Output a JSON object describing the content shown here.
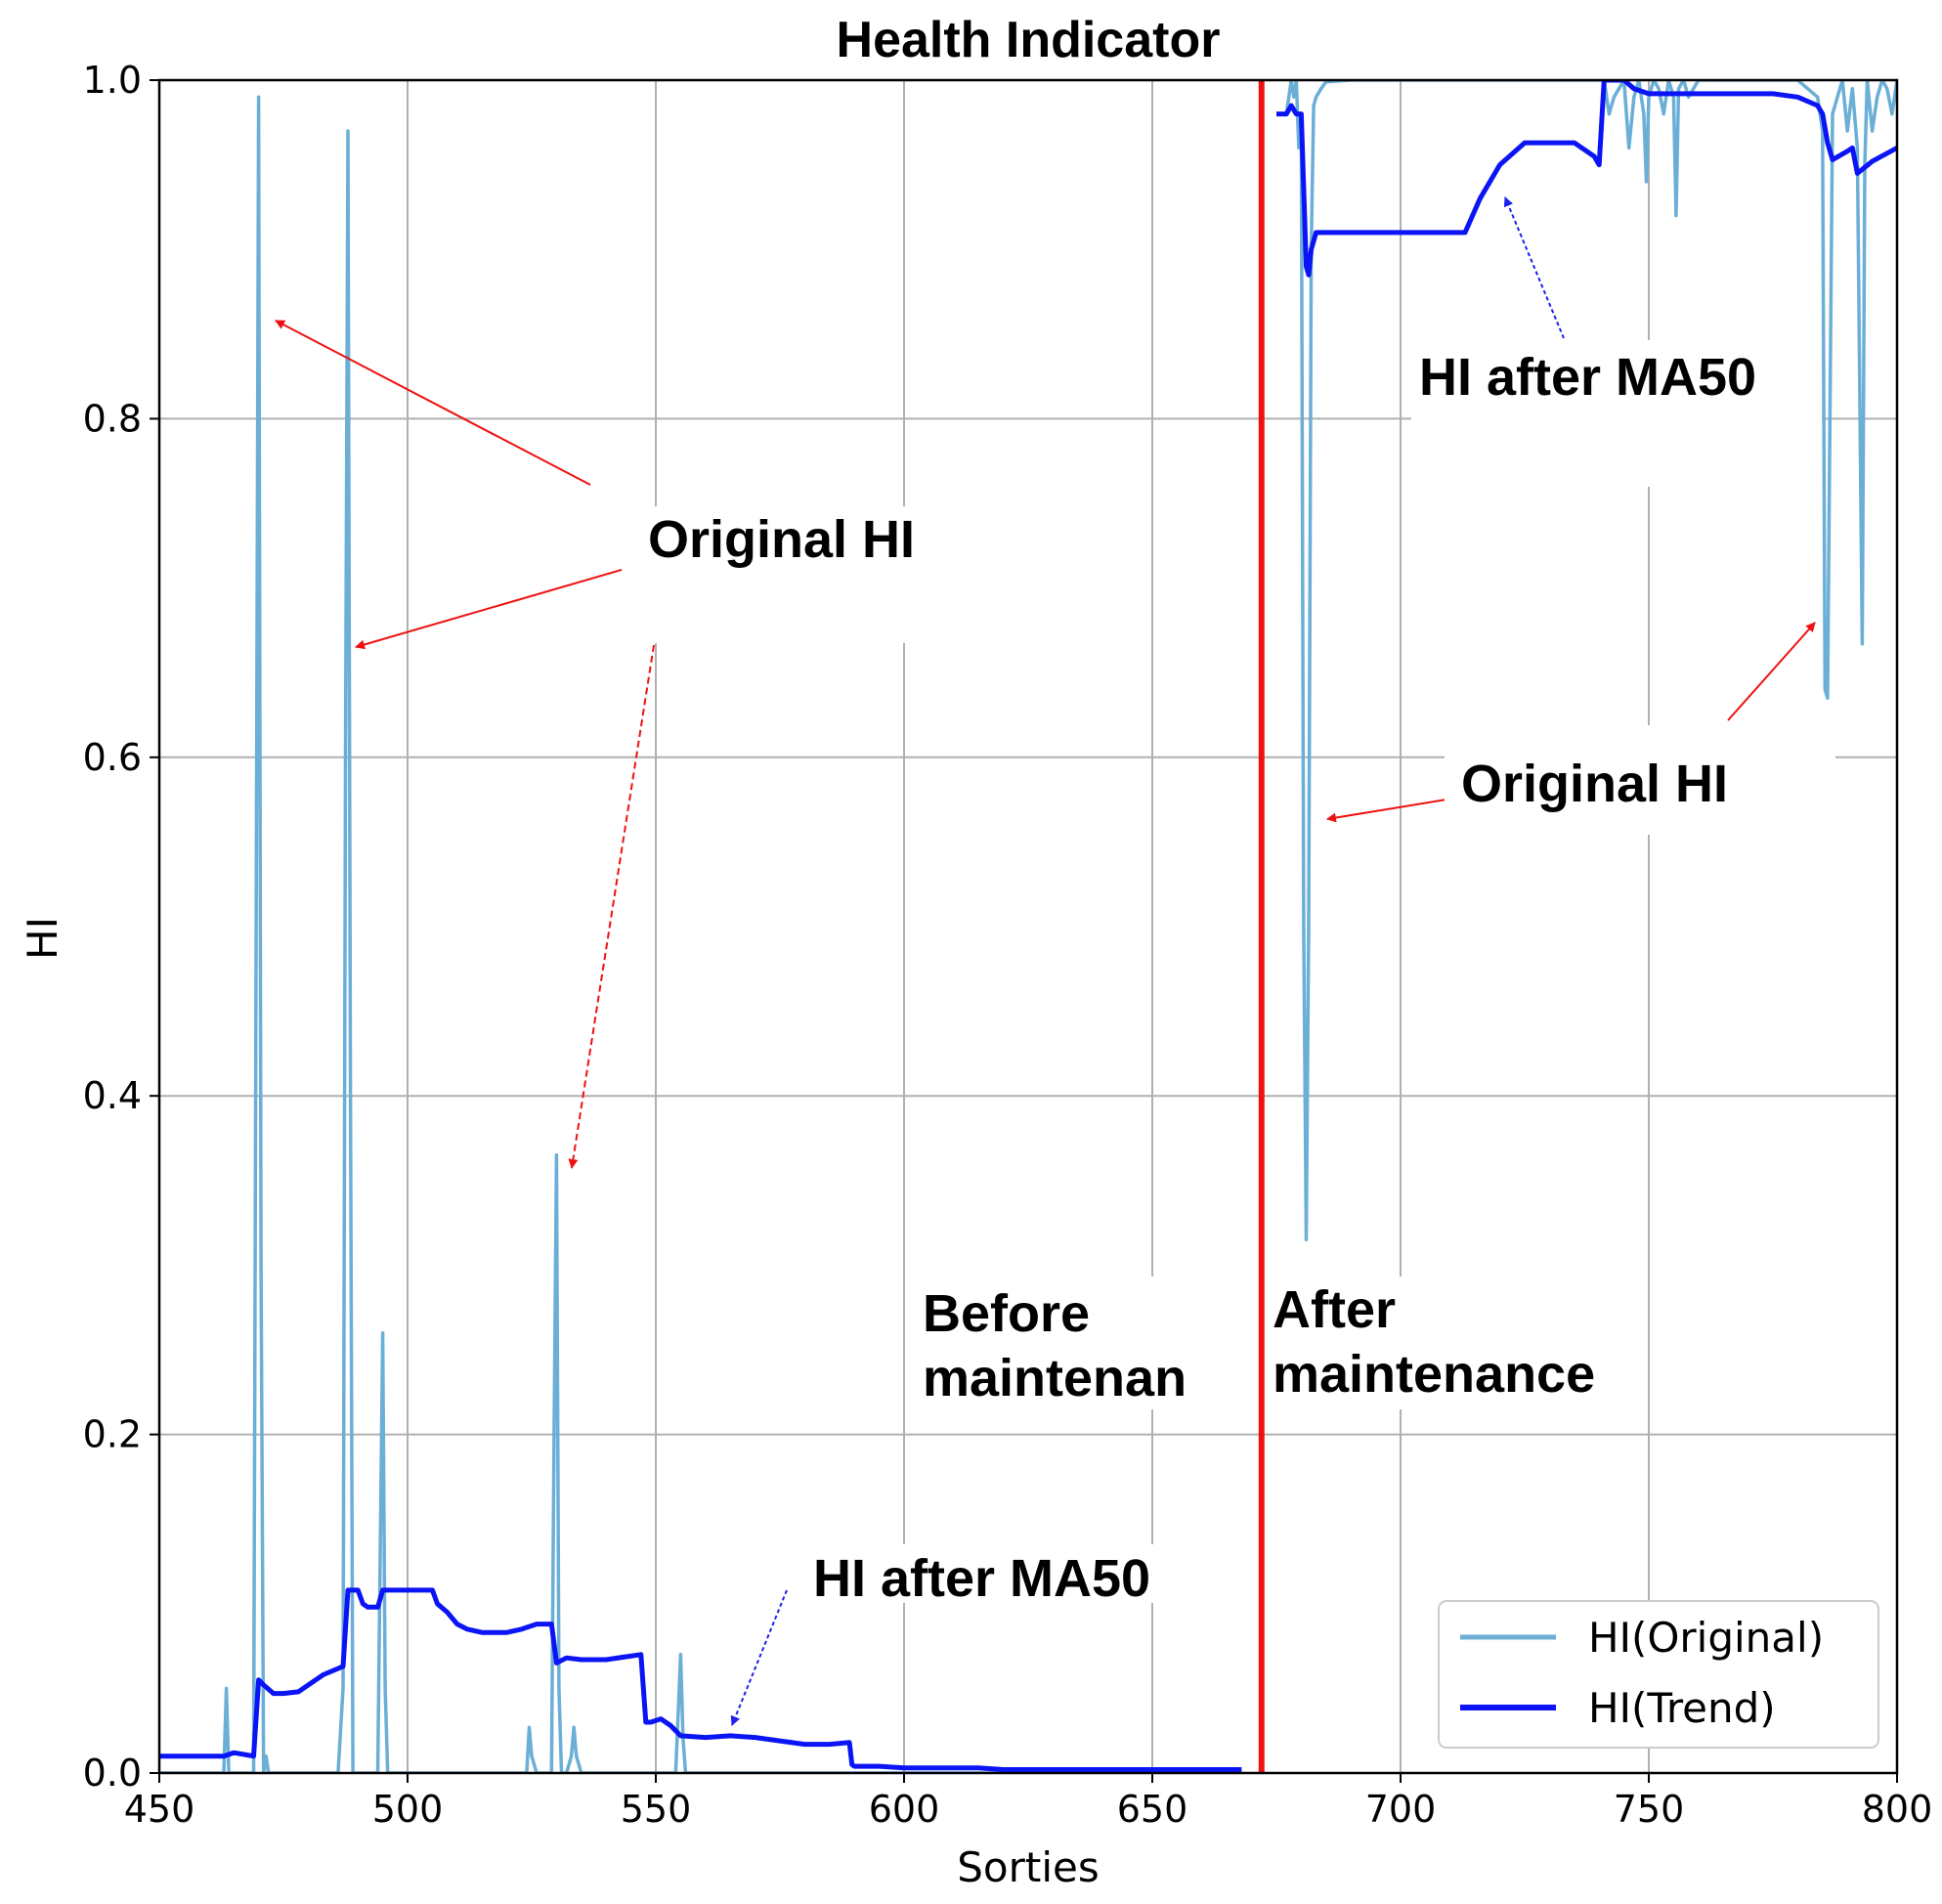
{
  "chart_data": {
    "type": "line",
    "title": "Health Indicator",
    "xlabel": "Sorties",
    "ylabel": "HI",
    "xlim": [
      450,
      800
    ],
    "ylim": [
      0,
      1.0
    ],
    "xticks": [
      450,
      500,
      550,
      600,
      650,
      700,
      750,
      800
    ],
    "yticks": [
      0.0,
      0.2,
      0.4,
      0.6,
      0.8,
      1.0
    ],
    "ytick_labels": [
      "0.0",
      "0.2",
      "0.4",
      "0.6",
      "0.8",
      "1.0"
    ],
    "grid": true,
    "legend_position": "lower-right",
    "maintenance_x": 672,
    "colors": {
      "original": "#6baed6",
      "trend": "#0a14f5",
      "maintenance": "#ee1111",
      "arrow_red": "#ee1111",
      "arrow_blue": "#1f1fee"
    },
    "series": [
      {
        "name": "HI(Original)",
        "color": "#6baed6",
        "x": [
          450,
          463,
          463.5,
          464,
          465,
          466,
          467,
          468,
          469,
          469.5,
          470,
          470.5,
          471,
          471.5,
          472,
          473,
          474,
          480,
          486,
          487,
          487.5,
          488,
          488.5,
          489,
          489.5,
          490,
          491,
          494,
          495,
          495.5,
          496,
          497,
          500,
          505,
          510,
          515,
          520,
          524,
          524.5,
          525,
          526,
          528,
          529,
          529.5,
          530,
          530.5,
          531,
          532,
          533,
          533.5,
          534,
          535,
          540,
          550,
          553,
          554,
          554.5,
          555,
          555.5,
          556,
          557,
          560,
          565,
          570,
          580,
          590,
          600,
          620,
          640,
          660,
          668
        ],
        "values": [
          0.0,
          0.0,
          0.05,
          0.0,
          0.0,
          0.0,
          0.0,
          0.0,
          0.0,
          0.5,
          0.99,
          0.3,
          0.0,
          0.01,
          0.0,
          0.0,
          0.0,
          0.0,
          0.0,
          0.05,
          0.6,
          0.97,
          0.4,
          0.0,
          0.0,
          0.0,
          0.0,
          0.0,
          0.26,
          0.05,
          0.0,
          0.0,
          0.0,
          0.0,
          0.0,
          0.0,
          0.0,
          0.0,
          0.027,
          0.01,
          0.0,
          0.0,
          0.0,
          0.2,
          0.365,
          0.05,
          0.0,
          0.0,
          0.01,
          0.027,
          0.01,
          0.0,
          0.0,
          0.0,
          0.0,
          0.0,
          0.035,
          0.07,
          0.02,
          0.0,
          0.0,
          0.0,
          0.0,
          0.0,
          0.0,
          0.0,
          0.0,
          0.0,
          0.0,
          0.0,
          0.0
        ]
      },
      {
        "name": "HI(Original)",
        "color": "#6baed6",
        "x": [
          677,
          677.5,
          678,
          678.5,
          679,
          679.5,
          680,
          680.5,
          681,
          681.5,
          682,
          682.5,
          683,
          684,
          685,
          690,
          700,
          715,
          730,
          740,
          741,
          742,
          743,
          744,
          745,
          746,
          747,
          748,
          749,
          749.5,
          750,
          751,
          752,
          753,
          754,
          755,
          755.5,
          756,
          757,
          758,
          760,
          770,
          780,
          784,
          785,
          785.5,
          786,
          787,
          788,
          789,
          790,
          791,
          792,
          793,
          793.5,
          794,
          795,
          796,
          797,
          798,
          799,
          800
        ],
        "values": [
          0.98,
          0.99,
          1.0,
          0.99,
          1.0,
          0.96,
          0.98,
          0.5,
          0.315,
          0.5,
          0.9,
          0.985,
          0.99,
          0.995,
          0.999,
          1.0,
          1.0,
          1.0,
          1.0,
          1.0,
          1.0,
          0.98,
          0.99,
          0.995,
          1.0,
          0.96,
          0.99,
          1.0,
          0.98,
          0.94,
          0.99,
          1.0,
          0.995,
          0.98,
          1.0,
          0.99,
          0.92,
          0.995,
          1.0,
          0.99,
          1.0,
          1.0,
          1.0,
          0.99,
          0.97,
          0.64,
          0.635,
          0.98,
          0.99,
          1.0,
          0.97,
          0.995,
          0.96,
          0.667,
          0.95,
          1.0,
          0.97,
          0.99,
          1.0,
          0.995,
          0.98,
          1.0
        ]
      },
      {
        "name": "HI(Trend)",
        "color": "#0a14f5",
        "x": [
          450,
          463,
          465,
          469,
          470,
          471,
          473,
          475,
          478,
          483,
          487,
          488,
          490,
          491,
          492,
          494,
          495,
          500,
          505,
          506,
          508,
          510,
          512,
          515,
          520,
          523,
          526,
          529,
          530,
          532,
          535,
          540,
          547,
          548,
          549,
          551,
          553,
          555,
          560,
          565,
          570,
          575,
          580,
          585,
          589,
          589.5,
          590,
          595,
          600,
          610,
          615,
          620,
          630,
          640,
          650,
          660,
          668
        ],
        "values": [
          0.01,
          0.01,
          0.012,
          0.01,
          0.055,
          0.052,
          0.047,
          0.047,
          0.048,
          0.058,
          0.063,
          0.108,
          0.108,
          0.1,
          0.098,
          0.098,
          0.108,
          0.108,
          0.108,
          0.1,
          0.095,
          0.088,
          0.085,
          0.083,
          0.083,
          0.085,
          0.088,
          0.088,
          0.065,
          0.068,
          0.067,
          0.067,
          0.07,
          0.03,
          0.03,
          0.032,
          0.028,
          0.022,
          0.021,
          0.022,
          0.021,
          0.019,
          0.017,
          0.017,
          0.018,
          0.005,
          0.004,
          0.004,
          0.003,
          0.003,
          0.003,
          0.002,
          0.002,
          0.002,
          0.002,
          0.002,
          0.002
        ],
        "width": 5
      },
      {
        "name": "HI(Trend)",
        "color": "#0a14f5",
        "x": [
          675,
          677,
          678,
          679,
          680,
          681,
          681.5,
          682,
          683,
          685,
          690,
          700,
          710,
          713,
          716,
          720,
          725,
          730,
          735,
          739,
          740,
          741,
          742,
          745,
          747,
          750,
          760,
          770,
          775,
          780,
          784,
          785,
          786,
          787,
          790,
          791,
          792,
          795,
          800
        ],
        "values": [
          0.98,
          0.98,
          0.985,
          0.98,
          0.98,
          0.89,
          0.885,
          0.9,
          0.91,
          0.91,
          0.91,
          0.91,
          0.91,
          0.91,
          0.93,
          0.95,
          0.963,
          0.963,
          0.963,
          0.955,
          0.95,
          1.0,
          1.0,
          1.0,
          0.995,
          0.992,
          0.992,
          0.992,
          0.992,
          0.99,
          0.985,
          0.98,
          0.963,
          0.953,
          0.958,
          0.96,
          0.945,
          0.952,
          0.96
        ],
        "width": 5
      }
    ],
    "legend": [
      {
        "label": "HI(Original)",
        "color": "#6baed6"
      },
      {
        "label": "HI(Trend)",
        "color": "#0a14f5"
      }
    ],
    "annotations": [
      {
        "lines": [
          "Original HI"
        ]
      },
      {
        "lines": [
          "Original HI"
        ]
      },
      {
        "lines": [
          "HI after MA50"
        ]
      },
      {
        "lines": [
          "HI after MA50"
        ]
      },
      {
        "lines": [
          "Before",
          "maintenan"
        ]
      },
      {
        "lines": [
          "After",
          "maintenance"
        ]
      }
    ]
  }
}
